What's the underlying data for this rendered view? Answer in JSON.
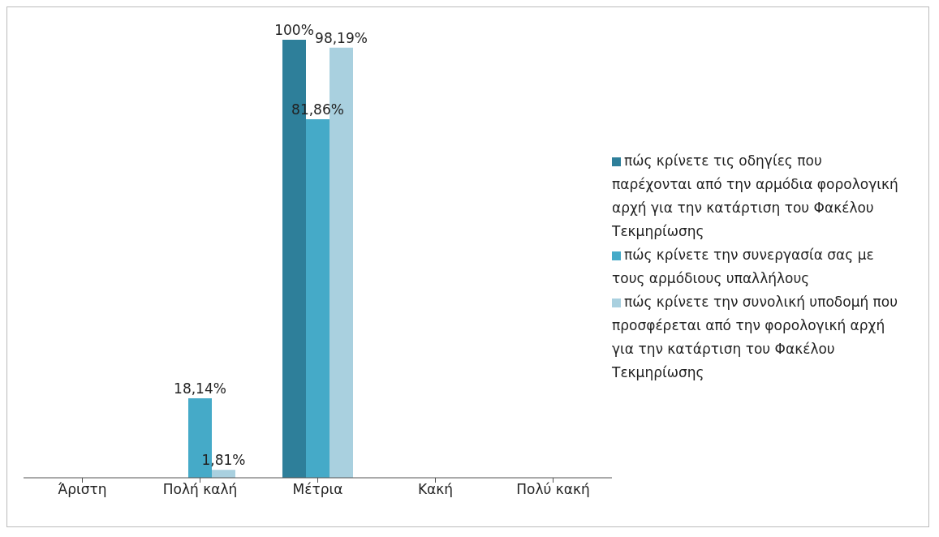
{
  "chart_data": {
    "type": "bar",
    "categories": [
      "Άριστη",
      "Πολή καλή",
      "Μέτρια",
      "Κακή",
      "Πολύ κακή"
    ],
    "series": [
      {
        "name": "πώς κρίνετε τις οδηγίες που παρέχονται από την αρμόδια φορολογική αρχή για την κατάρτιση του Φακέλου Τεκμηρίωσης",
        "color": "#2e7f9a",
        "values": [
          null,
          null,
          100,
          null,
          null
        ],
        "value_labels": [
          null,
          null,
          "100%",
          null,
          null
        ]
      },
      {
        "name": "πώς κρίνετε την συνεργασία σας με τους αρμόδιους υπαλλήλους",
        "color": "#45aac8",
        "values": [
          null,
          18.14,
          81.86,
          null,
          null
        ],
        "value_labels": [
          null,
          "18,14%",
          "81,86%",
          null,
          null
        ]
      },
      {
        "name": "πώς κρίνετε την συνολική υποδομή που προσφέρεται από την φορολογική αρχή για την κατάρτιση του Φακέλου Τεκμηρίωσης",
        "color": "#a9d0df",
        "values": [
          null,
          1.81,
          98.19,
          null,
          null
        ],
        "value_labels": [
          null,
          "1,81%",
          "98,19%",
          null,
          null
        ]
      }
    ],
    "legend": "right",
    "grid": false
  }
}
